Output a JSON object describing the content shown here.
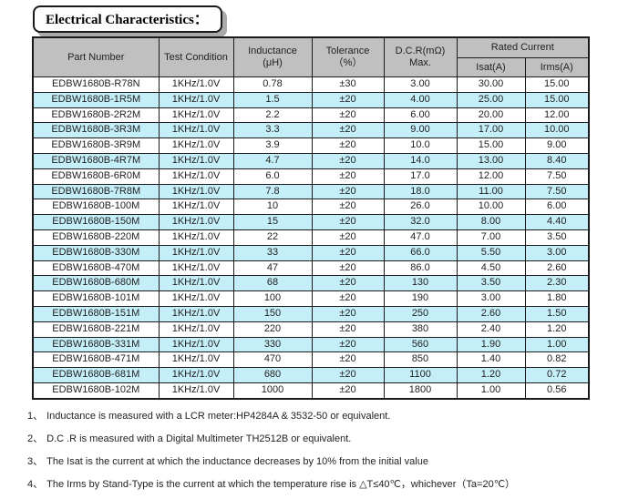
{
  "title": "Electrical Characteristics：",
  "colors": {
    "header_bg": "#c0c0c0",
    "row_highlight": "#c5eff8",
    "border": "#1a1a1a"
  },
  "table": {
    "headers": {
      "part_number": "Part Number",
      "test_condition": "Test Condition",
      "inductance": "Inductance",
      "inductance_unit": "(μH)",
      "tolerance": "Tolerance",
      "tolerance_unit": "（%）",
      "dcr": "D.C.R(mΩ)",
      "dcr_sub": "Max.",
      "rated_current": "Rated Current",
      "isat": "Isat(A)",
      "irms": "Irms(A)"
    },
    "rows": [
      {
        "part_number": "EDBW1680B-R78N",
        "test_condition": "1KHz/1.0V",
        "inductance": "0.78",
        "tolerance": "±30",
        "dcr_max": "3.00",
        "isat": "30.00",
        "irms": "15.00",
        "highlighted": false
      },
      {
        "part_number": "EDBW1680B-1R5M",
        "test_condition": "1KHz/1.0V",
        "inductance": "1.5",
        "tolerance": "±20",
        "dcr_max": "4.00",
        "isat": "25.00",
        "irms": "15.00",
        "highlighted": true
      },
      {
        "part_number": "EDBW1680B-2R2M",
        "test_condition": "1KHz/1.0V",
        "inductance": "2.2",
        "tolerance": "±20",
        "dcr_max": "6.00",
        "isat": "20.00",
        "irms": "12.00",
        "highlighted": false
      },
      {
        "part_number": "EDBW1680B-3R3M",
        "test_condition": "1KHz/1.0V",
        "inductance": "3.3",
        "tolerance": "±20",
        "dcr_max": "9.00",
        "isat": "17.00",
        "irms": "10.00",
        "highlighted": true
      },
      {
        "part_number": "EDBW1680B-3R9M",
        "test_condition": "1KHz/1.0V",
        "inductance": "3.9",
        "tolerance": "±20",
        "dcr_max": "10.0",
        "isat": "15.00",
        "irms": "9.00",
        "highlighted": false
      },
      {
        "part_number": "EDBW1680B-4R7M",
        "test_condition": "1KHz/1.0V",
        "inductance": "4.7",
        "tolerance": "±20",
        "dcr_max": "14.0",
        "isat": "13.00",
        "irms": "8.40",
        "highlighted": true
      },
      {
        "part_number": "EDBW1680B-6R0M",
        "test_condition": "1KHz/1.0V",
        "inductance": "6.0",
        "tolerance": "±20",
        "dcr_max": "17.0",
        "isat": "12.00",
        "irms": "7.50",
        "highlighted": false
      },
      {
        "part_number": "EDBW1680B-7R8M",
        "test_condition": "1KHz/1.0V",
        "inductance": "7.8",
        "tolerance": "±20",
        "dcr_max": "18.0",
        "isat": "11.00",
        "irms": "7.50",
        "highlighted": true
      },
      {
        "part_number": "EDBW1680B-100M",
        "test_condition": "1KHz/1.0V",
        "inductance": "10",
        "tolerance": "±20",
        "dcr_max": "26.0",
        "isat": "10.00",
        "irms": "6.00",
        "highlighted": false
      },
      {
        "part_number": "EDBW1680B-150M",
        "test_condition": "1KHz/1.0V",
        "inductance": "15",
        "tolerance": "±20",
        "dcr_max": "32.0",
        "isat": "8.00",
        "irms": "4.40",
        "highlighted": true
      },
      {
        "part_number": "EDBW1680B-220M",
        "test_condition": "1KHz/1.0V",
        "inductance": "22",
        "tolerance": "±20",
        "dcr_max": "47.0",
        "isat": "7.00",
        "irms": "3.50",
        "highlighted": false
      },
      {
        "part_number": "EDBW1680B-330M",
        "test_condition": "1KHz/1.0V",
        "inductance": "33",
        "tolerance": "±20",
        "dcr_max": "66.0",
        "isat": "5.50",
        "irms": "3.00",
        "highlighted": true
      },
      {
        "part_number": "EDBW1680B-470M",
        "test_condition": "1KHz/1.0V",
        "inductance": "47",
        "tolerance": "±20",
        "dcr_max": "86.0",
        "isat": "4.50",
        "irms": "2.60",
        "highlighted": false
      },
      {
        "part_number": "EDBW1680B-680M",
        "test_condition": "1KHz/1.0V",
        "inductance": "68",
        "tolerance": "±20",
        "dcr_max": "130",
        "isat": "3.50",
        "irms": "2.30",
        "highlighted": true
      },
      {
        "part_number": "EDBW1680B-101M",
        "test_condition": "1KHz/1.0V",
        "inductance": "100",
        "tolerance": "±20",
        "dcr_max": "190",
        "isat": "3.00",
        "irms": "1.80",
        "highlighted": false
      },
      {
        "part_number": "EDBW1680B-151M",
        "test_condition": "1KHz/1.0V",
        "inductance": "150",
        "tolerance": "±20",
        "dcr_max": "250",
        "isat": "2.60",
        "irms": "1.50",
        "highlighted": true
      },
      {
        "part_number": "EDBW1680B-221M",
        "test_condition": "1KHz/1.0V",
        "inductance": "220",
        "tolerance": "±20",
        "dcr_max": "380",
        "isat": "2.40",
        "irms": "1.20",
        "highlighted": false
      },
      {
        "part_number": "EDBW1680B-331M",
        "test_condition": "1KHz/1.0V",
        "inductance": "330",
        "tolerance": "±20",
        "dcr_max": "560",
        "isat": "1.90",
        "irms": "1.00",
        "highlighted": true
      },
      {
        "part_number": "EDBW1680B-471M",
        "test_condition": "1KHz/1.0V",
        "inductance": "470",
        "tolerance": "±20",
        "dcr_max": "850",
        "isat": "1.40",
        "irms": "0.82",
        "highlighted": false
      },
      {
        "part_number": "EDBW1680B-681M",
        "test_condition": "1KHz/1.0V",
        "inductance": "680",
        "tolerance": "±20",
        "dcr_max": "1100",
        "isat": "1.20",
        "irms": "0.72",
        "highlighted": true
      },
      {
        "part_number": "EDBW1680B-102M",
        "test_condition": "1KHz/1.0V",
        "inductance": "1000",
        "tolerance": "±20",
        "dcr_max": "1800",
        "isat": "1.00",
        "irms": "0.56",
        "highlighted": false
      }
    ]
  },
  "notes": [
    {
      "num": "1、",
      "text": "Inductance is measured with a LCR meter:HP4284A & 3532-50 or equivalent."
    },
    {
      "num": "2、",
      "text": "D.C .R is measured with a Digital Multimeter TH2512B or equivalent."
    },
    {
      "num": "3、",
      "text": "The Isat is the current at which the inductance decreases by 10% from the initial value"
    },
    {
      "num": "4、",
      "text": "The Irms by Stand-Type is the current at which the temperature rise is △T≤40℃，whichever（Ta=20℃）"
    }
  ]
}
